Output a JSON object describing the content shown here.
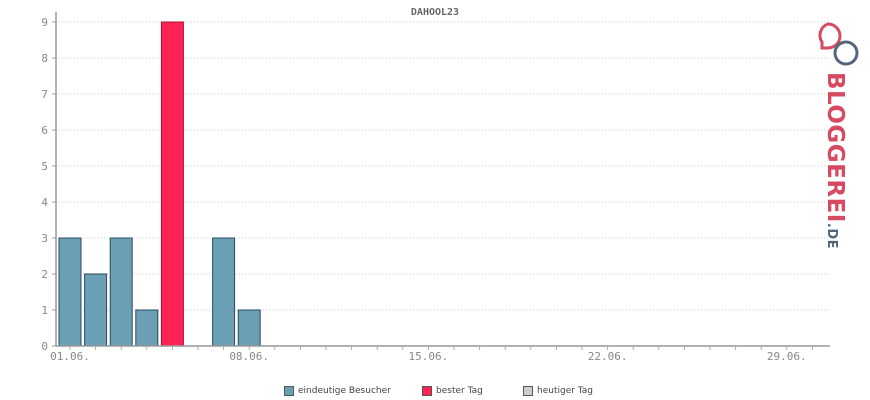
{
  "chart_data": {
    "type": "bar",
    "title": "DAHOOL23",
    "x_tick_labels": [
      "01.06.",
      "08.06.",
      "15.06.",
      "22.06.",
      "29.06."
    ],
    "y_tick_labels": [
      "0",
      "1",
      "2",
      "3",
      "4",
      "5",
      "6",
      "7",
      "8",
      "9"
    ],
    "ylim": [
      0,
      9
    ],
    "grid": true,
    "days": 30,
    "series": [
      {
        "name": "eindeutige Besucher",
        "color": "#6a9fb5",
        "points": [
          {
            "day": 1,
            "value": 3
          },
          {
            "day": 2,
            "value": 2
          },
          {
            "day": 3,
            "value": 3
          },
          {
            "day": 4,
            "value": 1
          },
          {
            "day": 7,
            "value": 3
          },
          {
            "day": 8,
            "value": 1
          }
        ]
      },
      {
        "name": "bester Tag",
        "color": "#ff2255",
        "points": [
          {
            "day": 5,
            "value": 9
          }
        ]
      },
      {
        "name": "heutiger Tag",
        "color": "#cccccc",
        "points": []
      }
    ]
  },
  "logo": {
    "text": "BLOGGEREI",
    "suffix": ".DE",
    "color_primary": "#d64a62",
    "color_secondary": "#55667a"
  }
}
